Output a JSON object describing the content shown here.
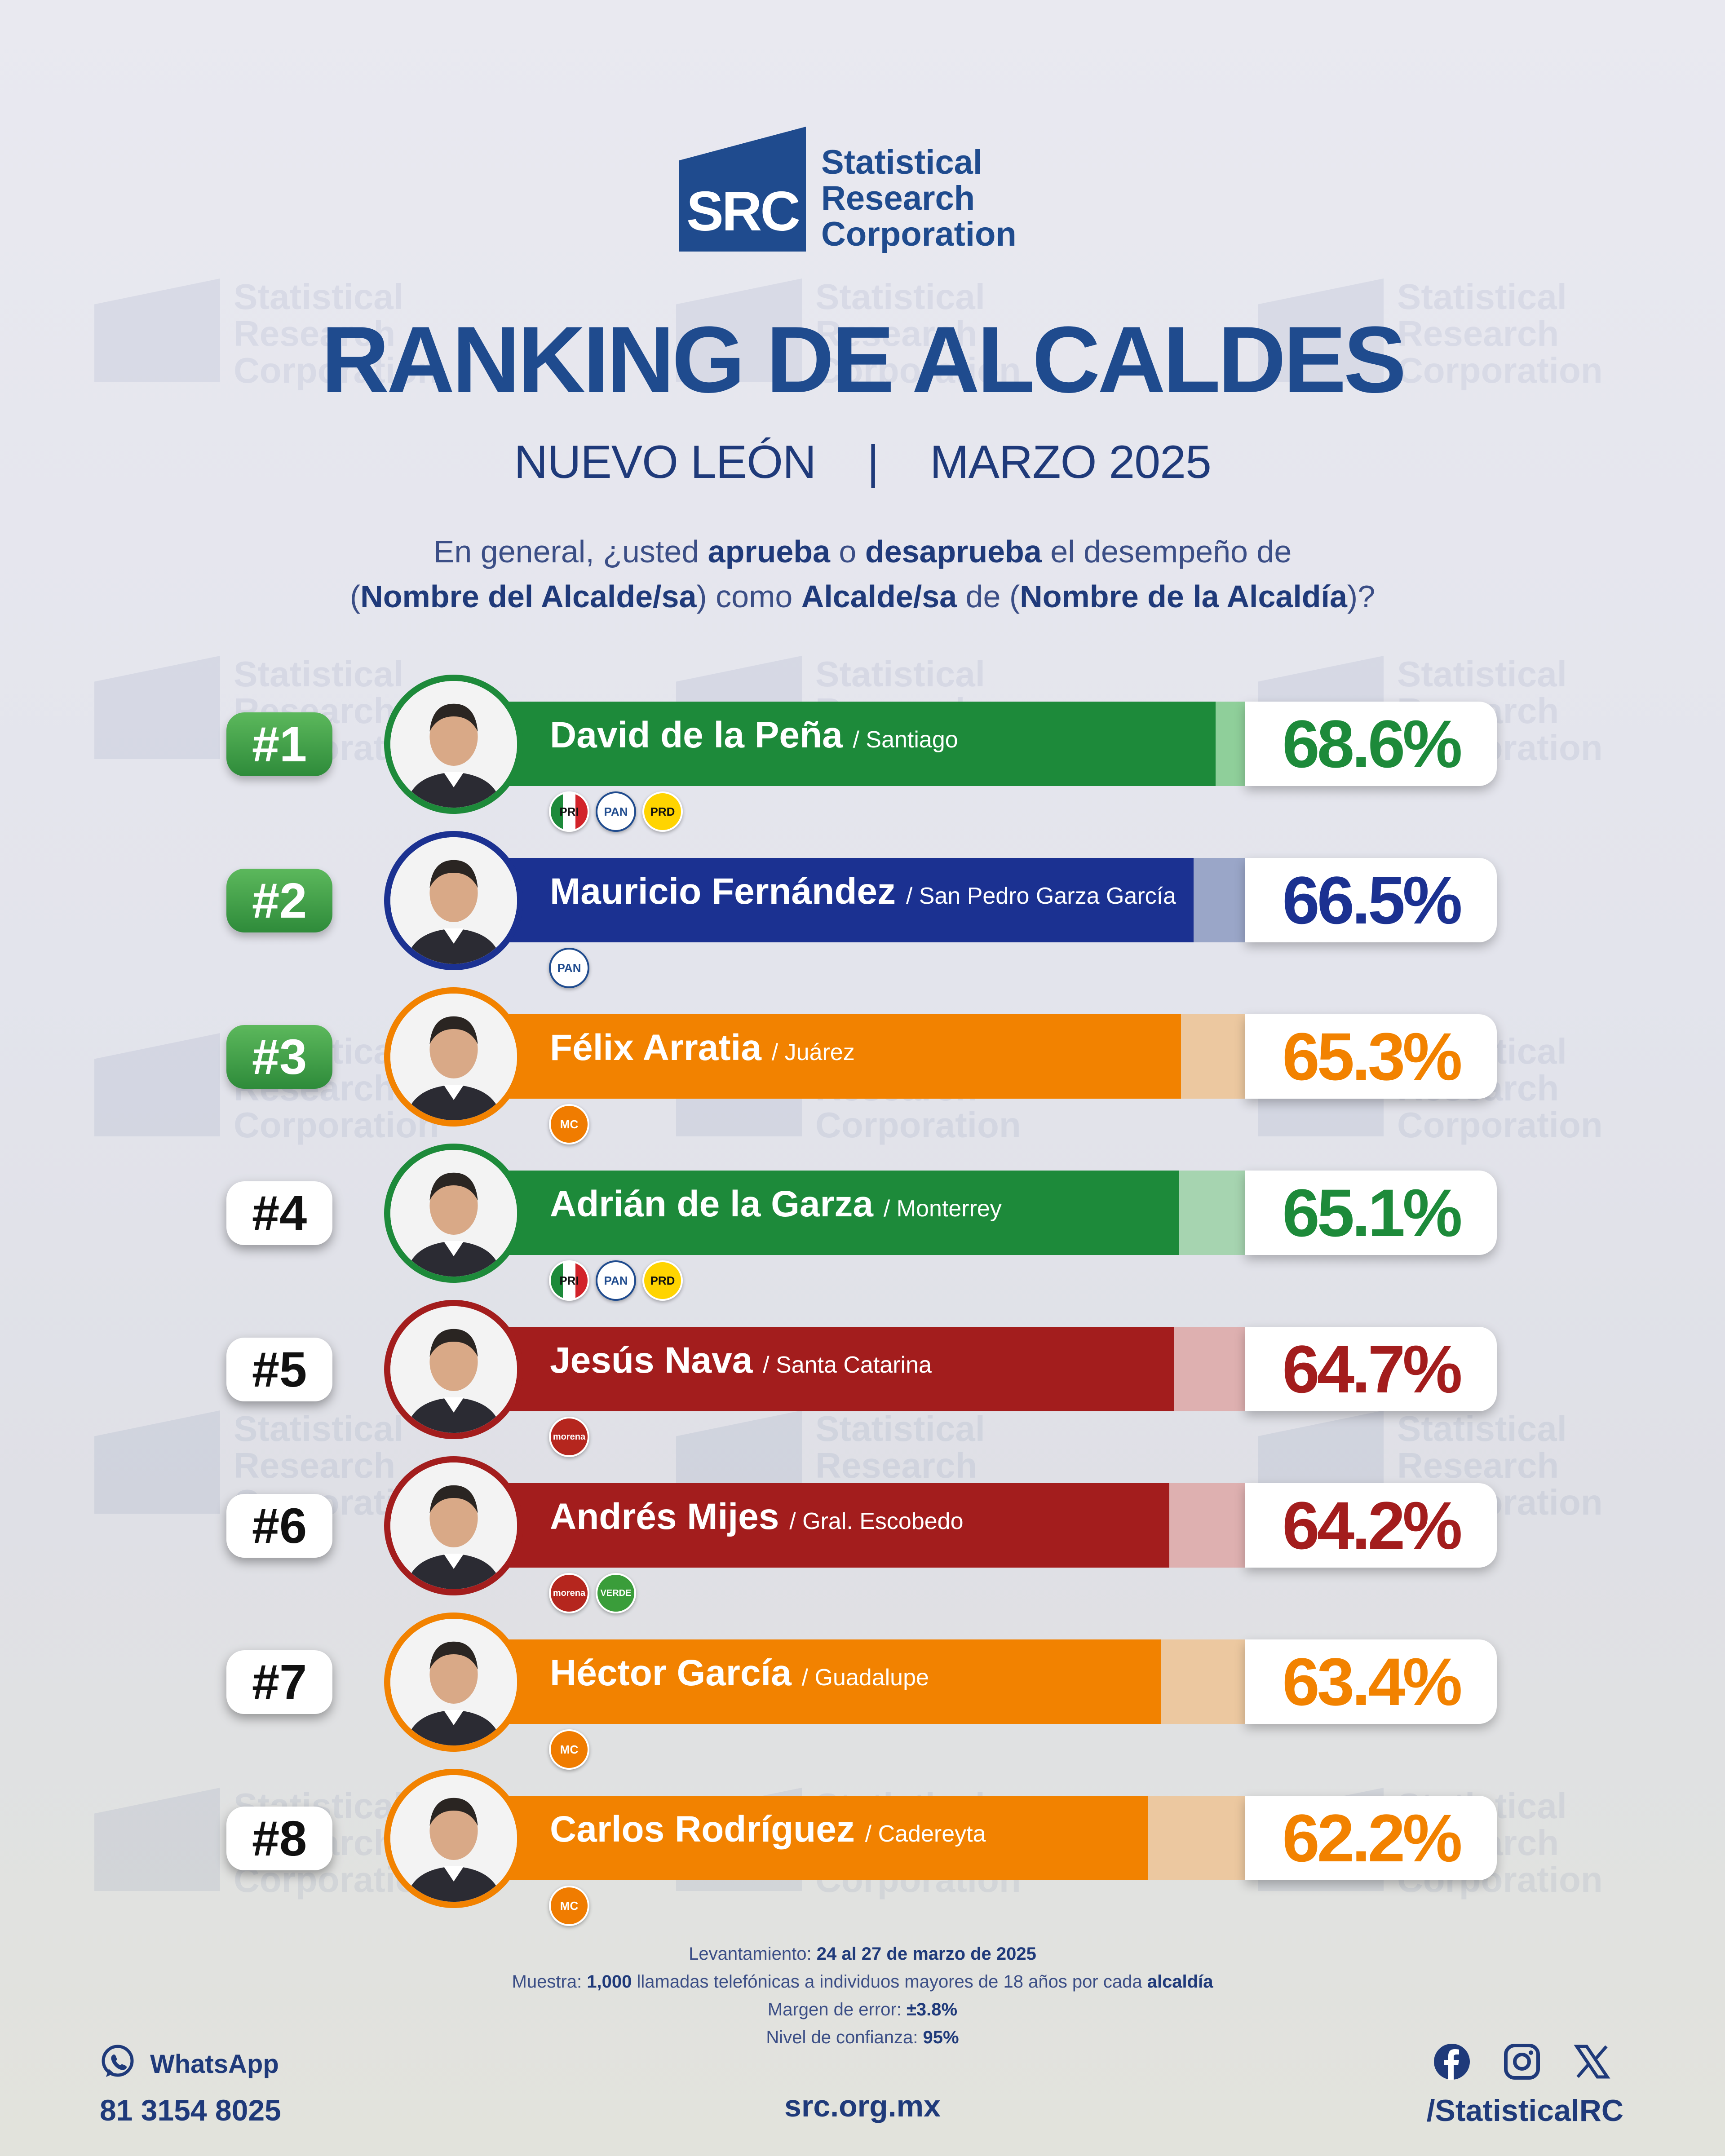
{
  "brand": {
    "abbr": "SRC",
    "name_lines": [
      "Statistical",
      "Research",
      "Corporation"
    ]
  },
  "title": "RANKING DE ALCALDES",
  "subtitle": {
    "state": "NUEVO LEÓN",
    "separator": "|",
    "date": "MARZO 2025"
  },
  "question": {
    "p1": "En general, ¿usted ",
    "b1": "aprueba",
    "p2": " o ",
    "b2": "desaprueba",
    "p3": " el desempeño de",
    "p4": "(",
    "b3": "Nombre del Alcalde/sa",
    "p5": ") como ",
    "b4": "Alcalde/sa",
    "p6": " de (",
    "b5": "Nombre de la Alcaldía",
    "p7": ")?"
  },
  "chart_data": {
    "type": "bar",
    "unit": "%",
    "xlim": [
      0,
      100
    ],
    "categories": [
      "David de la Peña",
      "Mauricio Fernández",
      "Félix Arratia",
      "Adrián de la Garza",
      "Jesús Nava",
      "Andrés Mijes",
      "Héctor García",
      "Carlos Rodríguez"
    ],
    "values": [
      68.6,
      66.5,
      65.3,
      65.1,
      64.7,
      64.2,
      63.4,
      62.2
    ],
    "rows": [
      {
        "rank": "#1",
        "name": "David de la Peña",
        "municipality": "/ Santiago",
        "value": 68.6,
        "value_label": "68.6%",
        "color": "#1d8a3a",
        "light": "#8fcf9a",
        "text_color": "#1d8a3a",
        "parties": [
          {
            "id": "pri",
            "label": "PRI"
          },
          {
            "id": "pan",
            "label": "PAN"
          },
          {
            "id": "prd",
            "label": "PRD"
          }
        ]
      },
      {
        "rank": "#2",
        "name": "Mauricio Fernández",
        "municipality": "/ San Pedro Garza García",
        "value": 66.5,
        "value_label": "66.5%",
        "color": "#1b3191",
        "light": "#9aa6c8",
        "text_color": "#1b3191",
        "parties": [
          {
            "id": "pan",
            "label": "PAN"
          }
        ]
      },
      {
        "rank": "#3",
        "name": "Félix Arratia",
        "municipality": "/ Juárez",
        "value": 65.3,
        "value_label": "65.3%",
        "color": "#f28200",
        "light": "#ecc8a0",
        "text_color": "#f28200",
        "parties": [
          {
            "id": "mc",
            "label": "MC"
          }
        ]
      },
      {
        "rank": "#4",
        "name": "Adrián de la Garza",
        "municipality": "/ Monterrey",
        "value": 65.1,
        "value_label": "65.1%",
        "color": "#1d8a3a",
        "light": "#a6d4b0",
        "text_color": "#1d8a3a",
        "parties": [
          {
            "id": "pri",
            "label": "PRI"
          },
          {
            "id": "pan",
            "label": "PAN"
          },
          {
            "id": "prd",
            "label": "PRD"
          }
        ]
      },
      {
        "rank": "#5",
        "name": "Jesús Nava",
        "municipality": "/ Santa Catarina",
        "value": 64.7,
        "value_label": "64.7%",
        "color": "#a31d1d",
        "light": "#deb0b0",
        "text_color": "#a31d1d",
        "parties": [
          {
            "id": "morena",
            "label": "morena"
          }
        ]
      },
      {
        "rank": "#6",
        "name": "Andrés Mijes",
        "municipality": "/ Gral. Escobedo",
        "value": 64.2,
        "value_label": "64.2%",
        "color": "#a31d1d",
        "light": "#deb0b0",
        "text_color": "#a31d1d",
        "parties": [
          {
            "id": "morena",
            "label": "morena"
          },
          {
            "id": "verde",
            "label": "VERDE"
          }
        ]
      },
      {
        "rank": "#7",
        "name": "Héctor García",
        "municipality": "/ Guadalupe",
        "value": 63.4,
        "value_label": "63.4%",
        "color": "#f28200",
        "light": "#ecc8a0",
        "text_color": "#f28200",
        "parties": [
          {
            "id": "mc",
            "label": "MC"
          }
        ]
      },
      {
        "rank": "#8",
        "name": "Carlos Rodríguez",
        "municipality": "/ Cadereyta",
        "value": 62.2,
        "value_label": "62.2%",
        "color": "#f28200",
        "light": "#ecc8a0",
        "text_color": "#f28200",
        "parties": [
          {
            "id": "mc",
            "label": "MC"
          }
        ]
      }
    ]
  },
  "methodology": {
    "l1a": "Levantamiento: ",
    "l1b": "24 al 27 de marzo de 2025",
    "l2a": "Muestra: ",
    "l2b": "1,000",
    "l2c": " llamadas telefónicas a individuos mayores de 18 años por cada ",
    "l2d": "alcaldía",
    "l3a": "Margen de error: ",
    "l3b": "±3.8%",
    "l4a": "Nivel de confianza: ",
    "l4b": "95%"
  },
  "footer": {
    "whatsapp_label": "WhatsApp",
    "whatsapp_number": "81 3154 8025",
    "website": "src.org.mx",
    "handle": "/StatisticalRC"
  },
  "icons": [
    "whatsapp-icon",
    "facebook-icon",
    "instagram-icon",
    "x-icon"
  ]
}
